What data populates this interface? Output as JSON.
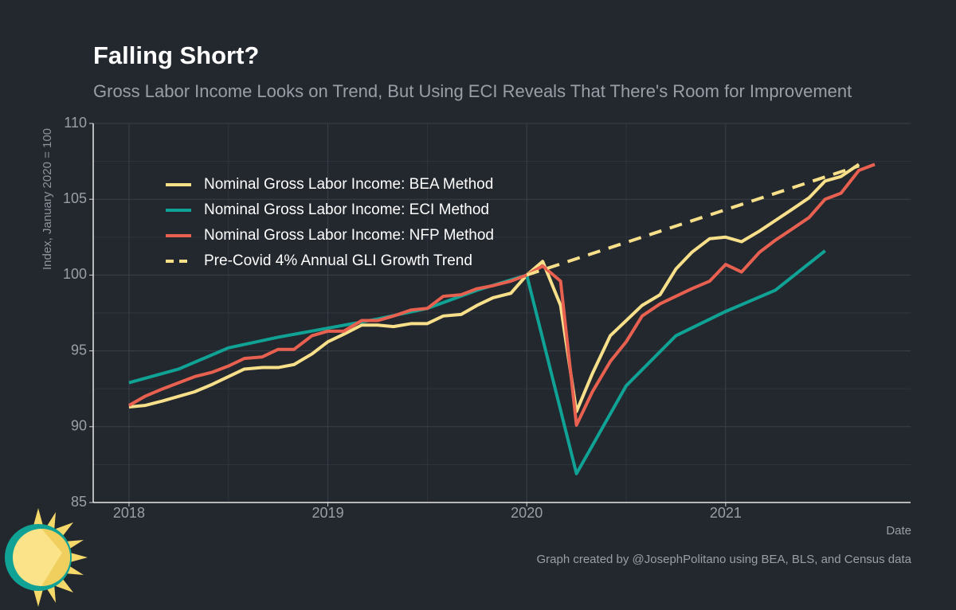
{
  "chart_data": {
    "type": "line",
    "title": "Falling Short?",
    "subtitle": "Gross Labor Income Looks on Trend, But Using ECI Reveals That There's Room for Improvement",
    "y_label": "Index, January 2020 = 100",
    "x_label": "Date",
    "caption": "Graph created by @JosephPolitano using BEA, BLS, and Census data",
    "xlim": [
      2017.82,
      2021.93
    ],
    "xticks": [
      2018,
      2019,
      2020,
      2021
    ],
    "ylim": [
      85,
      110
    ],
    "yticks": [
      85,
      90,
      95,
      100,
      105,
      110
    ],
    "grid": true,
    "legend": "upper left",
    "series": [
      {
        "name": "Nominal Gross Labor Income: BEA Method",
        "color": "#f8e08a",
        "style": "solid",
        "x": [
          2018,
          2018.08,
          2018.17,
          2018.25,
          2018.33,
          2018.42,
          2018.5,
          2018.58,
          2018.67,
          2018.75,
          2018.83,
          2018.92,
          2019,
          2019.08,
          2019.17,
          2019.25,
          2019.33,
          2019.42,
          2019.5,
          2019.58,
          2019.67,
          2019.75,
          2019.83,
          2019.92,
          2020,
          2020.08,
          2020.17,
          2020.25,
          2020.33,
          2020.42,
          2020.5,
          2020.58,
          2020.67,
          2020.75,
          2020.83,
          2020.92,
          2021,
          2021.08,
          2021.17,
          2021.25,
          2021.33,
          2021.42,
          2021.5,
          2021.58,
          2021.67
        ],
        "values": [
          91.3,
          91.4,
          91.7,
          92.0,
          92.3,
          92.8,
          93.3,
          93.8,
          93.9,
          93.9,
          94.1,
          94.8,
          95.6,
          96.1,
          96.7,
          96.7,
          96.6,
          96.8,
          96.8,
          97.3,
          97.4,
          98.0,
          98.5,
          98.8,
          100.0,
          100.9,
          98.0,
          91.0,
          93.5,
          96.0,
          97.0,
          98.0,
          98.7,
          100.4,
          101.5,
          102.4,
          102.5,
          102.2,
          102.9,
          103.6,
          104.3,
          105.1,
          106.2,
          106.5,
          107.3
        ]
      },
      {
        "name": "Nominal Gross Labor Income: ECI Method",
        "color": "#10a395",
        "style": "solid",
        "x": [
          2018,
          2018.25,
          2018.5,
          2018.75,
          2019,
          2019.25,
          2019.5,
          2019.75,
          2020,
          2020.25,
          2020.5,
          2020.75,
          2021,
          2021.25,
          2021.5
        ],
        "values": [
          92.9,
          93.8,
          95.2,
          95.9,
          96.5,
          97.1,
          97.8,
          99.0,
          100.0,
          86.9,
          92.7,
          96.0,
          97.6,
          99.0,
          101.6
        ]
      },
      {
        "name": "Nominal Gross Labor Income: NFP Method",
        "color": "#e8604f",
        "style": "solid",
        "x": [
          2018,
          2018.08,
          2018.17,
          2018.25,
          2018.33,
          2018.42,
          2018.5,
          2018.58,
          2018.67,
          2018.75,
          2018.83,
          2018.92,
          2019,
          2019.08,
          2019.17,
          2019.25,
          2019.33,
          2019.42,
          2019.5,
          2019.58,
          2019.67,
          2019.75,
          2019.83,
          2019.92,
          2020,
          2020.08,
          2020.17,
          2020.25,
          2020.33,
          2020.42,
          2020.5,
          2020.58,
          2020.67,
          2020.75,
          2020.83,
          2020.92,
          2021,
          2021.08,
          2021.17,
          2021.25,
          2021.33,
          2021.42,
          2021.5,
          2021.58,
          2021.67,
          2021.75
        ],
        "values": [
          91.4,
          92.0,
          92.5,
          92.9,
          93.3,
          93.6,
          94.0,
          94.5,
          94.6,
          95.1,
          95.1,
          96.0,
          96.3,
          96.3,
          97.0,
          97.0,
          97.3,
          97.7,
          97.8,
          98.6,
          98.7,
          99.1,
          99.3,
          99.6,
          100.0,
          100.6,
          99.6,
          90.1,
          92.3,
          94.3,
          95.6,
          97.3,
          98.1,
          98.6,
          99.1,
          99.6,
          100.7,
          100.2,
          101.5,
          102.3,
          103.0,
          103.8,
          105.0,
          105.4,
          106.9,
          107.3
        ]
      },
      {
        "name": "Pre-Covid 4% Annual GLI Growth Trend",
        "color": "#f8e08a",
        "style": "dashed",
        "x": [
          2020,
          2021.67
        ],
        "values": [
          100.0,
          107.2
        ]
      }
    ]
  }
}
